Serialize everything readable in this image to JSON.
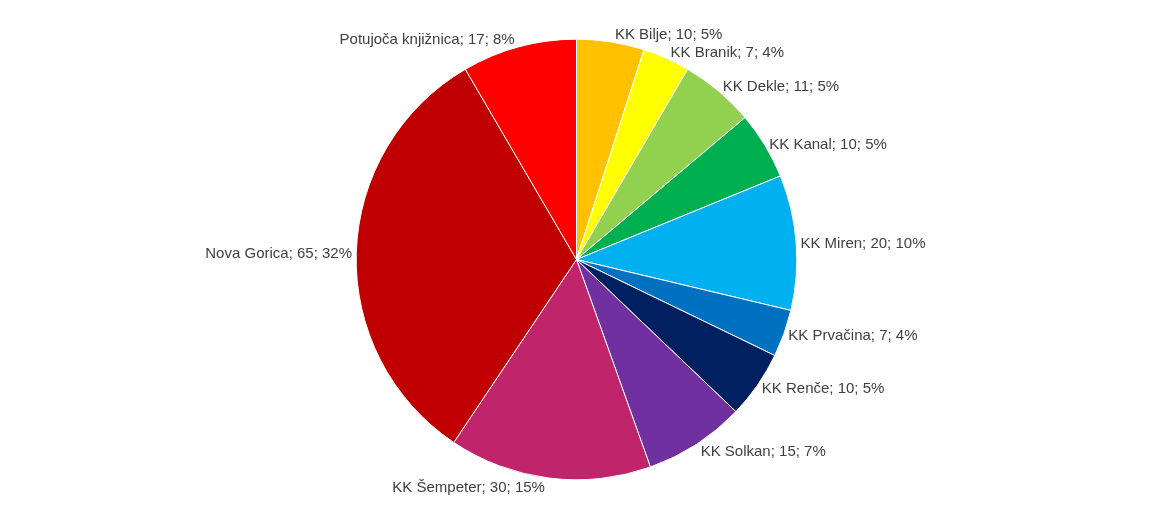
{
  "chart_data": {
    "type": "pie",
    "categories": [
      "KK Bilje",
      "KK Branik",
      "KK Dekle",
      "KK Kanal",
      "KK Miren",
      "KK Prvačina",
      "KK Renče",
      "KK Solkan",
      "KK Šempeter",
      "Nova Gorica",
      "Potujoča knjižnica"
    ],
    "values": [
      10,
      7,
      11,
      10,
      20,
      7,
      10,
      15,
      30,
      65,
      17
    ],
    "value_labels": [
      "10; 5%",
      "7; 4%",
      "11; 5%",
      "10; 5%",
      "20; 10%",
      "7; 4%",
      "10; 5%",
      "15; 7%",
      "30; 15%",
      "65; 32%",
      "17; 8%"
    ],
    "colors": [
      "#ffc000",
      "#ffff00",
      "#92d050",
      "#00b050",
      "#00b0f0",
      "#0070c0",
      "#002060",
      "#7030a0",
      "#c0246a",
      "#c00000",
      "#ff0000"
    ],
    "legend": false
  }
}
